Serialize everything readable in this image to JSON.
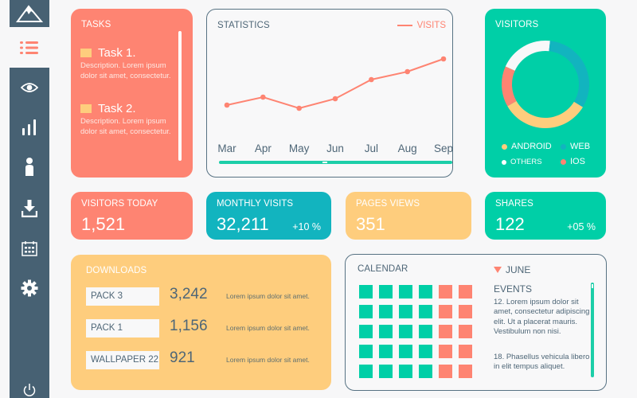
{
  "colors": {
    "sidebar": "#476173",
    "coral": "#fe8472",
    "teal": "#12b4bf",
    "green": "#00cfa7",
    "yellow": "#fecd7d",
    "white": "#f8f8f9",
    "text_dark": "#4e6677"
  },
  "sidebar": {
    "items": [
      {
        "icon": "mountain-logo-icon",
        "active": false
      },
      {
        "icon": "list-icon",
        "active": true
      },
      {
        "icon": "eye-icon",
        "active": false
      },
      {
        "icon": "bar-chart-icon",
        "active": false
      },
      {
        "icon": "user-icon",
        "active": false
      },
      {
        "icon": "download-icon",
        "active": false
      },
      {
        "icon": "calendar-icon",
        "active": false
      },
      {
        "icon": "gear-icon",
        "active": false
      },
      {
        "icon": "power-icon",
        "active": false
      }
    ]
  },
  "tasks": {
    "title": "TASKS",
    "items": [
      {
        "title": "Task 1.",
        "description": "Description. Lorem ipsum dolor sit amet, consectetur."
      },
      {
        "title": "Task 2.",
        "description": "Description. Lorem ipsum dolor sit amet, consectetur."
      }
    ]
  },
  "statistics": {
    "title": "STATISTICS",
    "legend": "VISITS"
  },
  "chart_data": [
    {
      "type": "line",
      "title": "STATISTICS",
      "categories": [
        "Mar",
        "Apr",
        "May",
        "Jun",
        "Jul",
        "Aug",
        "Sep"
      ],
      "series": [
        {
          "name": "VISITS",
          "color": "#fe8472",
          "values": [
            30,
            35,
            28,
            34,
            46,
            51,
            59
          ]
        }
      ],
      "ylim": [
        0,
        80
      ],
      "grid": false,
      "legend": "top-right",
      "xlabel": "",
      "ylabel": ""
    },
    {
      "type": "pie",
      "title": "VISITORS",
      "donut": true,
      "slices": [
        {
          "name": "OTHERS",
          "value": 20,
          "color": "#f8f8f9"
        },
        {
          "name": "WEB",
          "value": 32,
          "color": "#12b4bf"
        },
        {
          "name": "ANDROID",
          "value": 33,
          "color": "#fecd7d"
        },
        {
          "name": "IOS",
          "value": 15,
          "color": "#fe8472"
        }
      ],
      "legend": "bottom"
    }
  ],
  "visitors": {
    "title": "VISITORS",
    "legend": [
      {
        "label": "ANDROID",
        "color": "#fecd7d"
      },
      {
        "label": "WEB",
        "color": "#12b4bf"
      },
      {
        "label": "OTHERS",
        "color": "#ffffff"
      },
      {
        "label": "IOS",
        "color": "#fe8472"
      }
    ]
  },
  "kpis": {
    "visitors_today": {
      "title": "VISITORS TODAY",
      "value": "1,521"
    },
    "monthly_visits": {
      "title": "MONTHLY VISITS",
      "value": "32,211",
      "delta": "+10 %"
    },
    "pages_views": {
      "title": "PAGES VIEWS",
      "value": "351"
    },
    "shares": {
      "title": "SHARES",
      "value": "122",
      "delta": "+05 %"
    }
  },
  "downloads": {
    "title": "DOWNLOADS",
    "rows": [
      {
        "name": "PACK  3",
        "count": "3,242",
        "description": "Lorem ipsum dolor sit amet."
      },
      {
        "name": "PACK  1",
        "count": "1,156",
        "description": "Lorem ipsum dolor sit amet."
      },
      {
        "name": "WALLPAPER 22",
        "count": "921",
        "description": "Lorem ipsum dolor sit amet."
      }
    ]
  },
  "calendar": {
    "title": "CALENDAR",
    "month": "JUNE",
    "events_title": "EVENTS",
    "events": [
      "12. Lorem ipsum dolor sit amet, consectetur adipiscing elit. Ut a placerat mauris. Vestibulum non nisi.",
      "18. Phasellus vehicula libero in elit tempus aliquet."
    ],
    "grid": {
      "rows": 5,
      "columns": 6,
      "weekend_columns": [
        4,
        5
      ]
    }
  }
}
